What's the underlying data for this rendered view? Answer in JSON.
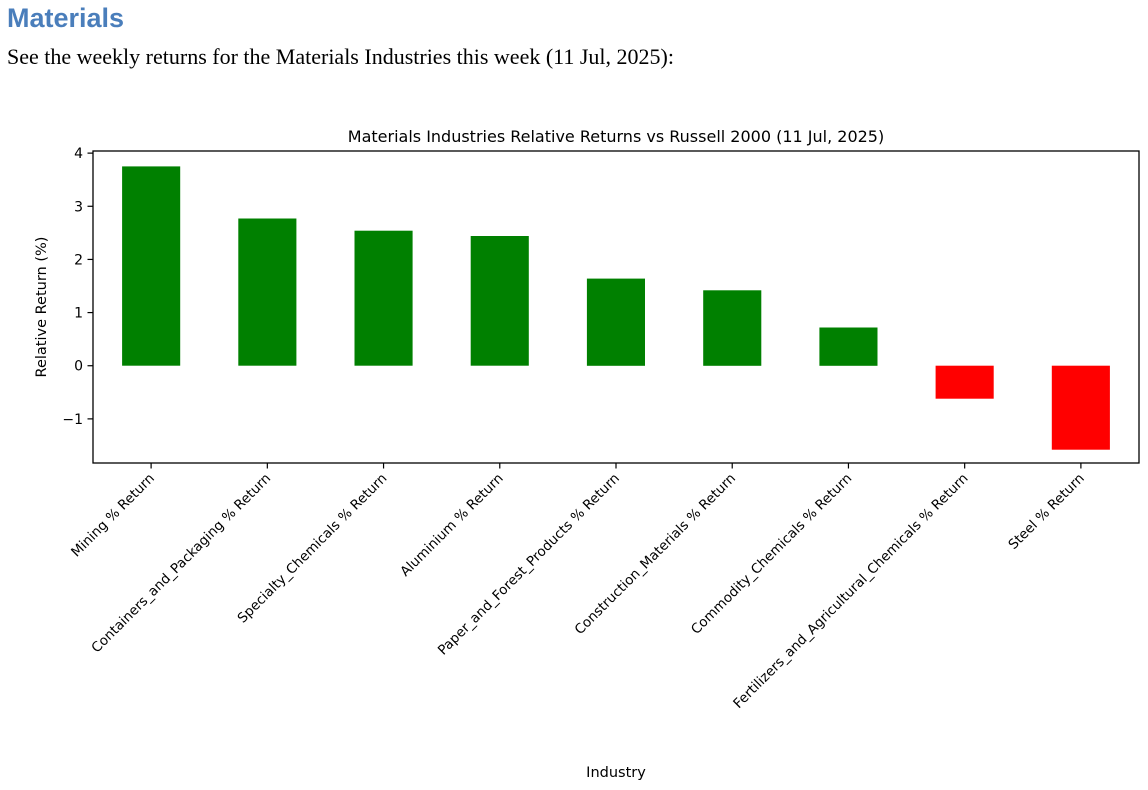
{
  "page": {
    "heading": "Materials",
    "intro": "See the weekly returns for the Materials Industries this week (11 Jul, 2025):"
  },
  "colors": {
    "heading_blue": "#4a7ebb",
    "positive_bar": "#008000",
    "negative_bar": "#ff0000",
    "axis": "#000000",
    "background": "#ffffff"
  },
  "chart_data": {
    "type": "bar",
    "title": "Materials Industries Relative Returns vs Russell 2000 (11 Jul, 2025)",
    "xlabel": "Industry",
    "ylabel": "Relative Return (%)",
    "categories": [
      "Mining % Return",
      "Containers_and_Packaging % Return",
      "Specialty_Chemicals % Return",
      "Aluminium % Return",
      "Paper_and_Forest_Products % Return",
      "Construction_Materials % Return",
      "Commodity_Chemicals % Return",
      "Fertilizers_and_Agricultural_Chemicals % Return",
      "Steel % Return"
    ],
    "values": [
      3.75,
      2.77,
      2.54,
      2.44,
      1.64,
      1.42,
      0.72,
      -0.62,
      -1.58
    ],
    "yticks": [
      4,
      3,
      2,
      1,
      0,
      -1
    ],
    "ylim": [
      -1.83,
      4.04
    ],
    "x_tick_rotation": 45,
    "grid": false,
    "legend": "none",
    "positive_color": "#008000",
    "negative_color": "#ff0000"
  }
}
